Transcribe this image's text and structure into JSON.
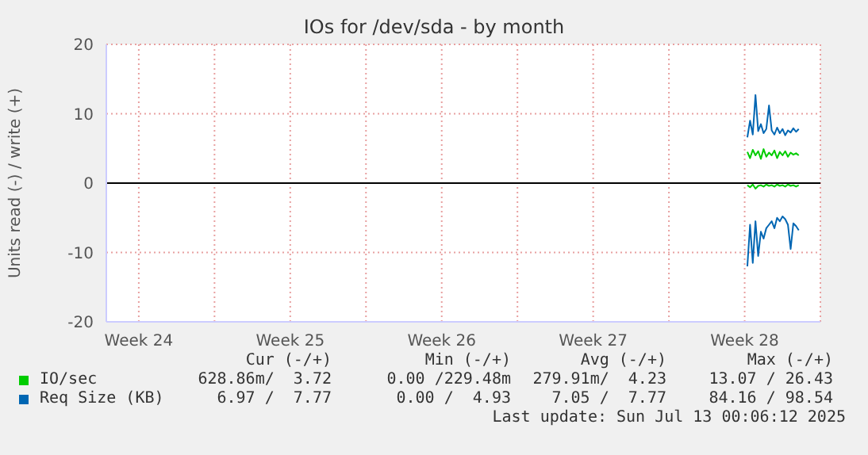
{
  "chart_data": {
    "type": "line",
    "title": "IOs for /dev/sda - by month",
    "ylabel": "Units read (-) / write (+)",
    "x": [
      "2025-07-10T15:00",
      "2025-07-10T18:00",
      "2025-07-10T21:00",
      "2025-07-11T00:00",
      "2025-07-11T03:00",
      "2025-07-11T06:00",
      "2025-07-11T09:00",
      "2025-07-11T12:00",
      "2025-07-11T15:00",
      "2025-07-11T18:00",
      "2025-07-11T21:00",
      "2025-07-12T00:00",
      "2025-07-12T03:00",
      "2025-07-12T06:00",
      "2025-07-12T09:00",
      "2025-07-12T12:00",
      "2025-07-12T15:00",
      "2025-07-12T18:00",
      "2025-07-12T21:00",
      "2025-07-13T00:00"
    ],
    "series": [
      {
        "name": "IO/sec",
        "color": "#00cc00",
        "values": [
          4.5,
          3.6,
          4.8,
          4.0,
          4.6,
          3.5,
          4.9,
          3.8,
          4.4,
          4.0,
          4.7,
          3.6,
          4.5,
          4.0,
          4.6,
          3.8,
          4.4,
          4.1,
          4.3,
          4.0
        ]
      },
      {
        "color": "#00cc00",
        "values": [
          -0.3,
          -0.6,
          -0.2,
          -0.8,
          -0.4,
          -0.3,
          -0.5,
          -0.2,
          -0.4,
          -0.3,
          -0.5,
          -0.2,
          -0.4,
          -0.3,
          -0.5,
          -0.2,
          -0.4,
          -0.3,
          -0.5,
          -0.3
        ]
      },
      {
        "name": "Req Size (KB)",
        "color": "#0066b3",
        "values": [
          6.6,
          9.0,
          7.0,
          12.7,
          7.5,
          8.5,
          7.2,
          7.8,
          11.2,
          7.6,
          7.0,
          8.0,
          7.2,
          7.8,
          6.9,
          7.6,
          7.3,
          7.9,
          7.4,
          7.8
        ]
      },
      {
        "color": "#0066b3",
        "values": [
          -12.0,
          -6.0,
          -11.5,
          -5.5,
          -10.5,
          -7.0,
          -8.0,
          -6.5,
          -6.0,
          -5.5,
          -6.5,
          -5.0,
          -5.5,
          -4.8,
          -5.2,
          -6.0,
          -9.5,
          -5.8,
          -6.2,
          -6.8
        ]
      }
    ],
    "xlim": [
      "2025-06-11",
      "2025-07-14"
    ],
    "xticks": [
      {
        "value": "2025-06-12T12:00",
        "label": "Week 24"
      },
      {
        "value": "2025-06-16",
        "label": null
      },
      {
        "value": "2025-06-19T12:00",
        "label": "Week 25"
      },
      {
        "value": "2025-06-23",
        "label": null
      },
      {
        "value": "2025-06-26T12:00",
        "label": "Week 26"
      },
      {
        "value": "2025-06-30",
        "label": null
      },
      {
        "value": "2025-07-03T12:00",
        "label": "Week 27"
      },
      {
        "value": "2025-07-07",
        "label": null
      },
      {
        "value": "2025-07-10T12:00",
        "label": "Week 28"
      }
    ],
    "ylim": [
      -20,
      20
    ],
    "yticks": [
      -20,
      -10,
      0,
      10,
      20
    ],
    "grid": true,
    "legend": "bottom",
    "marker": "none",
    "line_style": "solid",
    "ref_lines": [
      {
        "axis": "y",
        "value": 0,
        "color": "#000000"
      }
    ],
    "annotations": [
      "Cur (-/+)",
      "Min (-/+)",
      "Avg (-/+)",
      "Max (-/+)",
      "628.86m/  3.72",
      "0.00 /229.48m",
      "279.91m/  4.23",
      "13.07 / 26.43",
      "6.97 /  7.77",
      "0.00 /  4.93",
      "7.05 /  7.77",
      "84.16 / 98.54",
      "Last update: Sun Jul 13 00:06:12 2025"
    ]
  }
}
